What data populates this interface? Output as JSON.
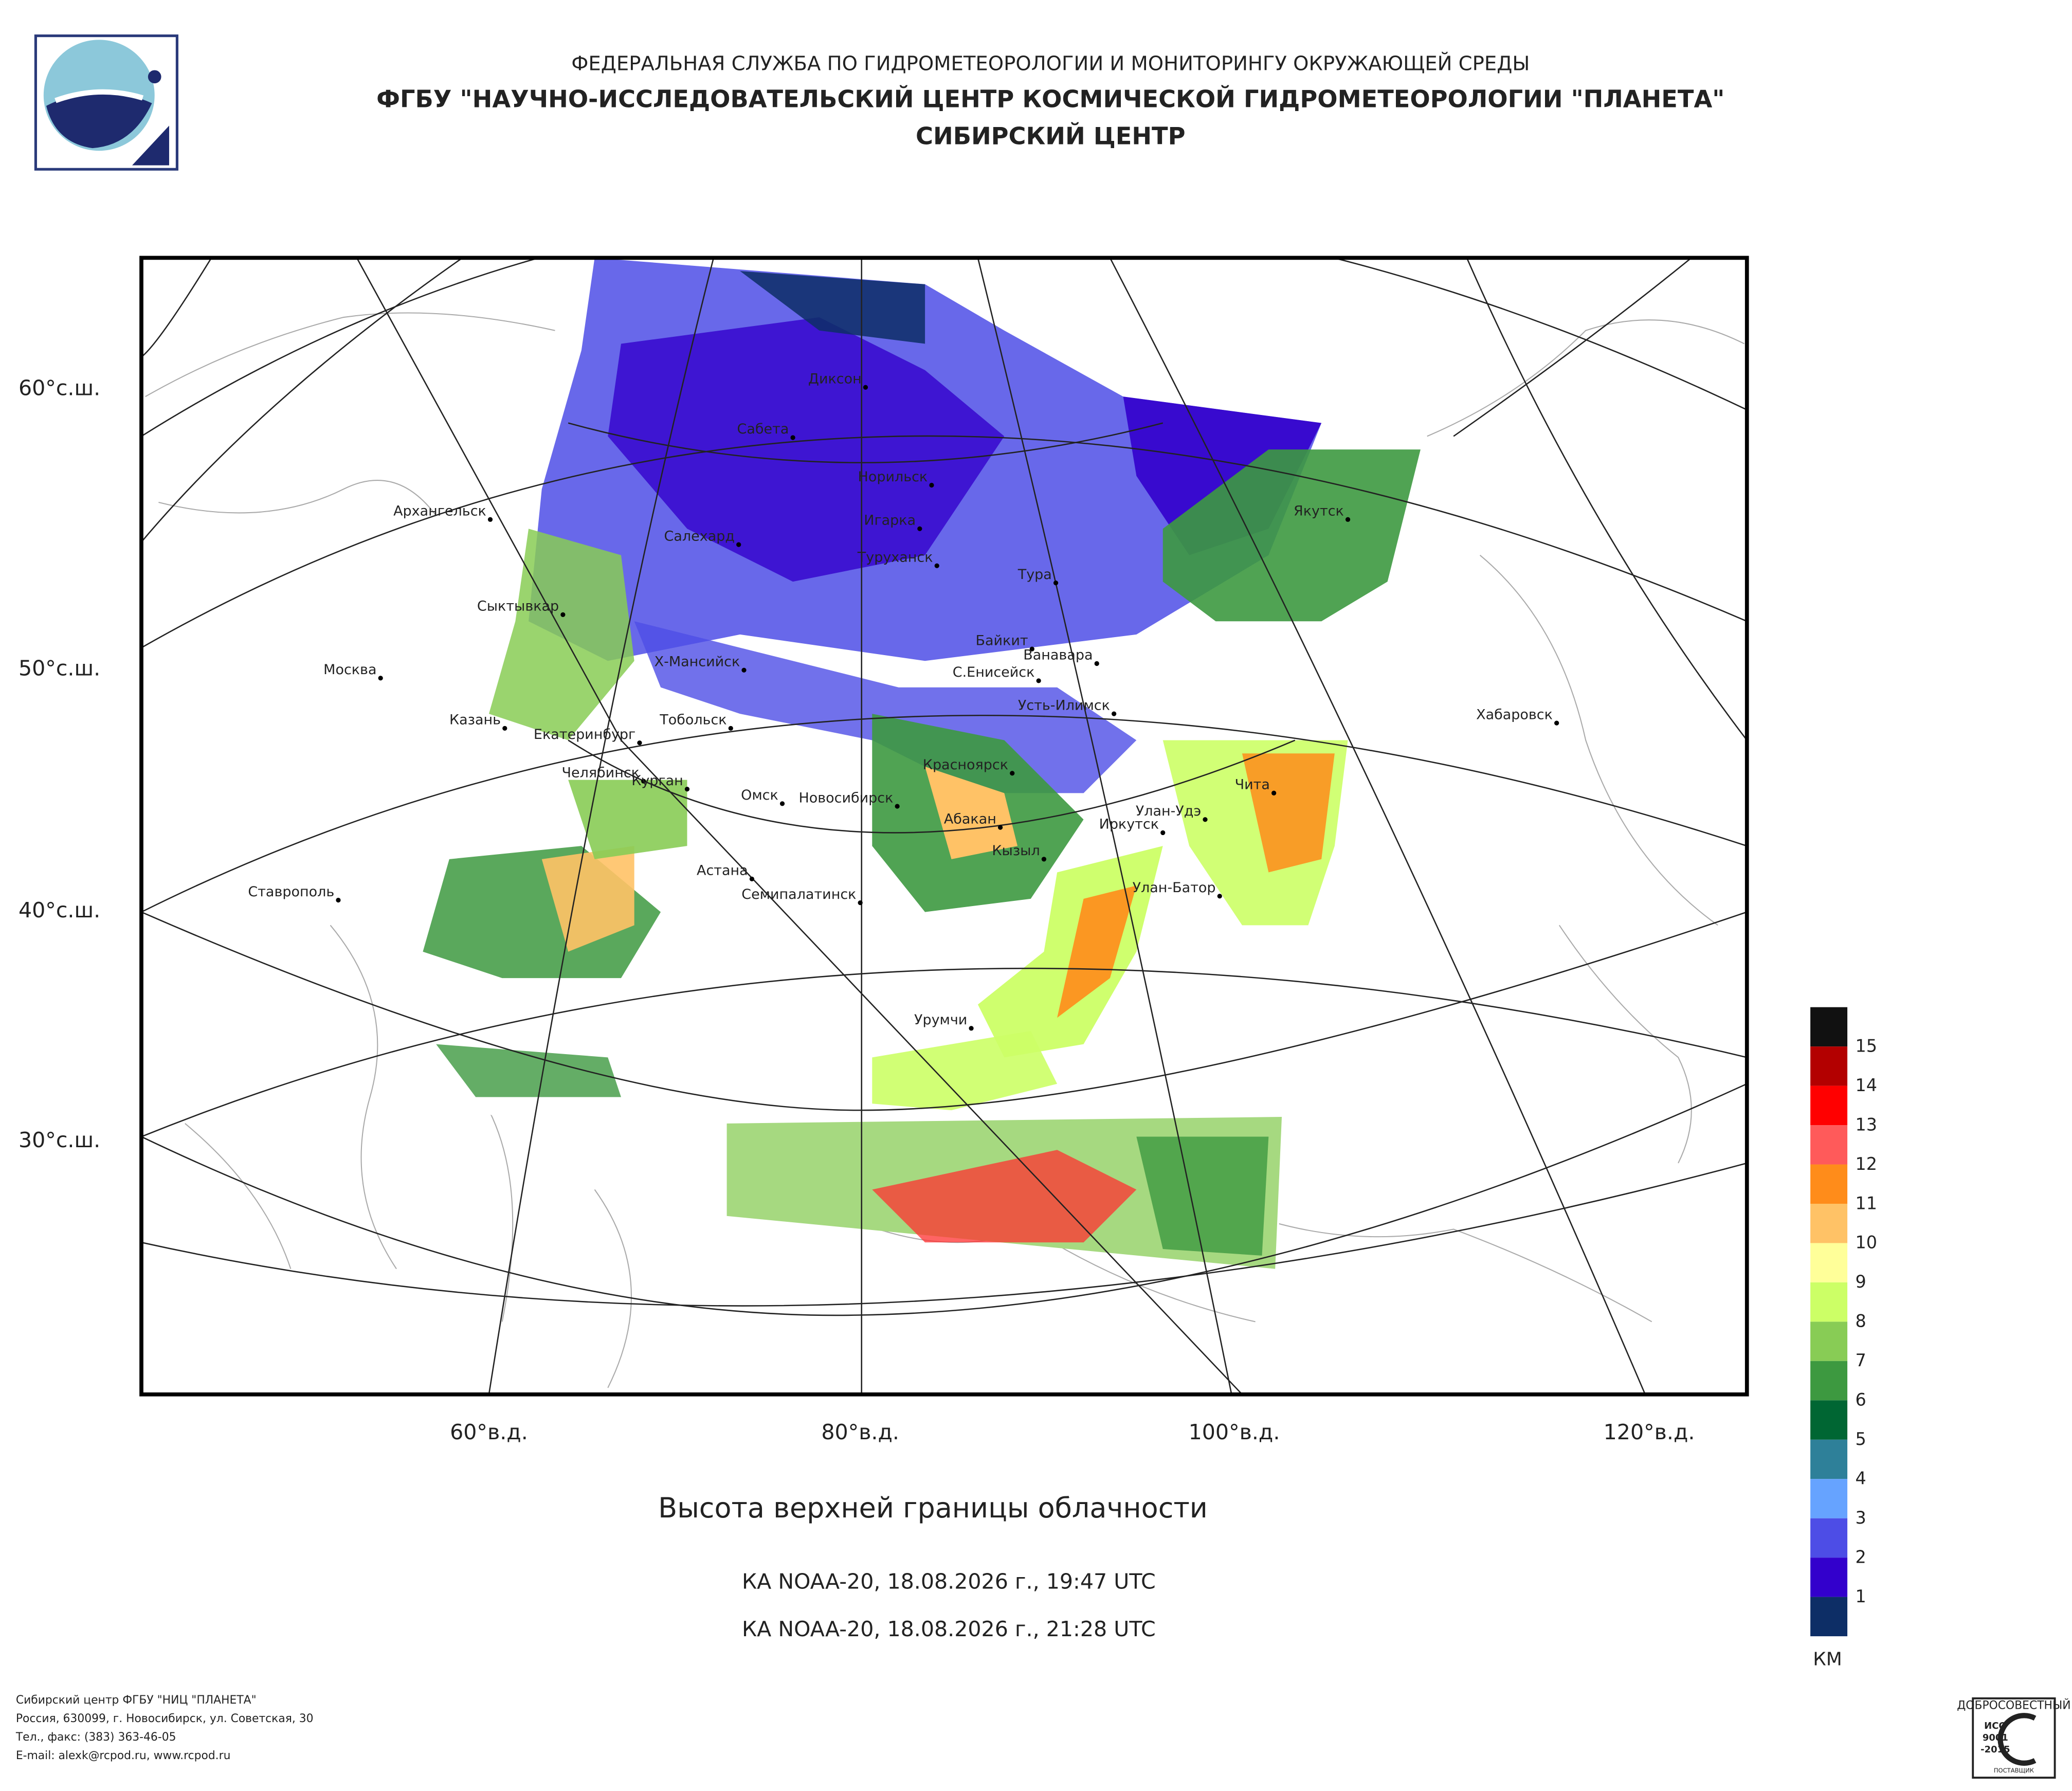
{
  "header": {
    "line1": "ФЕДЕРАЛЬНАЯ СЛУЖБА ПО ГИДРОМЕТЕОРОЛОГИИ И МОНИТОРИНГУ ОКРУЖАЮЩЕЙ СРЕДЫ",
    "line2": "ФГБУ \"НАУЧНО-ИССЛЕДОВАТЕЛЬСКИЙ ЦЕНТР КОСМИЧЕСКОЙ ГИДРОМЕТЕОРОЛОГИИ \"ПЛАНЕТА\"",
    "line3": "СИБИРСКИЙ ЦЕНТР"
  },
  "map": {
    "lat_labels": [
      "60°с.ш.",
      "50°с.ш.",
      "40°с.ш.",
      "30°с.ш."
    ],
    "lon_labels": [
      "60°в.д.",
      "80°в.д.",
      "100°в.д.",
      "120°в.д."
    ],
    "cities": [
      "Диксон",
      "Сабета",
      "Норильск",
      "Игарка",
      "Салехард",
      "Туруханск",
      "Тура",
      "Архангельск",
      "Сыктывкар",
      "Байкит",
      "Ванавара",
      "Москва",
      "Х-Мансийск",
      "С.Енисейск",
      "Усть-Илимск",
      "Хабаровск",
      "Казань",
      "Тобольск",
      "Екатеринбург",
      "Якутск",
      "Челябинск",
      "Курган",
      "Омск",
      "Новосибирск",
      "Красноярск",
      "Чита",
      "Улан-Удэ",
      "Абакан",
      "Иркутск",
      "Кызыл",
      "Ставрополь",
      "Астана",
      "Семипалатинск",
      "Улан-Батор",
      "Урумчи"
    ]
  },
  "title": "Высота верхней границы облачности",
  "passes": [
    "КА NOAA-20, 18.08.2026 г., 19:47 UTC",
    "КА NOAA-20, 18.08.2026 г., 21:28 UTC"
  ],
  "legend": {
    "colors": [
      "#111111",
      "#b30000",
      "#ff0000",
      "#ff5a5a",
      "#ff8c1a",
      "#ffc266",
      "#ffff99",
      "#ccff66",
      "#88cc55",
      "#3d9940",
      "#006633",
      "#2e8099",
      "#66a3ff",
      "#4d4de6",
      "#3300cc",
      "#0d2e66"
    ],
    "labels": [
      15,
      14,
      13,
      12,
      11,
      10,
      9,
      8,
      7,
      6,
      5,
      4,
      3,
      2,
      1
    ],
    "unit": "КМ"
  },
  "footer": [
    "Сибирский центр ФГБУ \"НИЦ \"ПЛАНЕТА\"",
    "Россия, 630099, г. Новосибирск, ул. Советская, 30",
    "Тел., факс: (383) 363-46-05",
    "E-mail: alexk@rcpod.ru, www.rcpod.ru"
  ],
  "badge": [
    "ДОБРОСОВЕСТНЫЙ",
    "ИСО",
    "9001",
    "-2015",
    "ПОСТАВЩИК"
  ]
}
